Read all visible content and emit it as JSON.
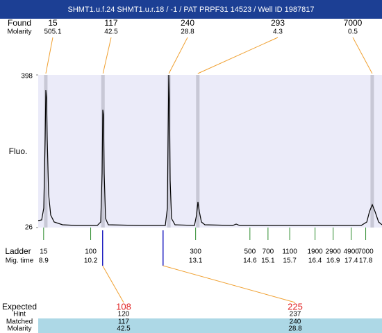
{
  "chart_data": {
    "type": "electropherogram",
    "title": "SHMT1.u.f.24  SHMT1.u.r.18 / -1 / PAT PRPF31 14523 / Well ID 1987817",
    "ylabel": "Fluo.",
    "xlim": [
      8.75,
      18.25
    ],
    "ylim": [
      26,
      398
    ],
    "yticks": [
      26,
      398
    ],
    "background": "#ebebf9",
    "peak_band_color": "#c8c8d6",
    "trace": {
      "color": "#000000",
      "x": [
        8.75,
        8.846,
        8.904,
        8.942,
        8.961,
        8.98,
        9.0,
        9.038,
        9.095,
        9.191,
        9.422,
        9.806,
        10.381,
        10.477,
        10.516,
        10.535,
        10.554,
        10.573,
        10.612,
        10.689,
        11.533,
        12.262,
        12.32,
        12.339,
        12.358,
        12.377,
        12.397,
        12.435,
        12.531,
        13.069,
        13.126,
        13.164,
        13.203,
        13.26,
        13.356,
        14.124,
        14.22,
        14.316,
        17.675,
        17.829,
        17.905,
        17.982,
        18.059,
        18.155,
        18.25
      ],
      "values": [
        42.9,
        44.6,
        73.3,
        242.4,
        360.8,
        343.9,
        242.4,
        107.2,
        56.4,
        39.5,
        32.8,
        31.1,
        31.1,
        39.5,
        157.9,
        313.2,
        301.6,
        157.9,
        48.0,
        32.8,
        31.1,
        31.1,
        73.3,
        242.4,
        398.0,
        327.0,
        141.0,
        48.0,
        32.8,
        31.1,
        56.4,
        88.6,
        64.9,
        39.5,
        32.8,
        31.1,
        34.5,
        31.1,
        31.1,
        39.5,
        64.9,
        81.8,
        64.9,
        39.5,
        32.8
      ]
    },
    "found": {
      "label": "Found",
      "sublabel": "Molarity",
      "color": "#f0a030",
      "sizes": [
        15,
        117,
        240,
        293,
        7000
      ],
      "molarity": [
        505.1,
        42.5,
        28.8,
        4.3,
        0.5
      ],
      "x": [
        8.96,
        10.54,
        12.36,
        13.16,
        17.98
      ]
    },
    "ladder": {
      "label": "Ladder",
      "sublabel": "Mig. time",
      "color": "#2a8a2a",
      "sizes": [
        15,
        100,
        300,
        500,
        700,
        1100,
        1900,
        2900,
        4900,
        7000
      ],
      "times": [
        8.9,
        10.2,
        13.1,
        14.6,
        15.1,
        15.7,
        16.4,
        16.9,
        17.4,
        17.8
      ]
    },
    "expected": {
      "labels": [
        "Expected",
        "Hint",
        "Matched",
        "Molarity"
      ],
      "color": "#e02020",
      "marker_color": "#2020c0",
      "link_color": "#f0a030",
      "band_color": "#add8e6",
      "x": [
        10.53,
        12.2
      ],
      "expected": [
        108,
        225
      ],
      "hint": [
        120,
        237
      ],
      "matched": [
        117,
        240
      ],
      "molarity": [
        42.5,
        28.8
      ]
    }
  }
}
